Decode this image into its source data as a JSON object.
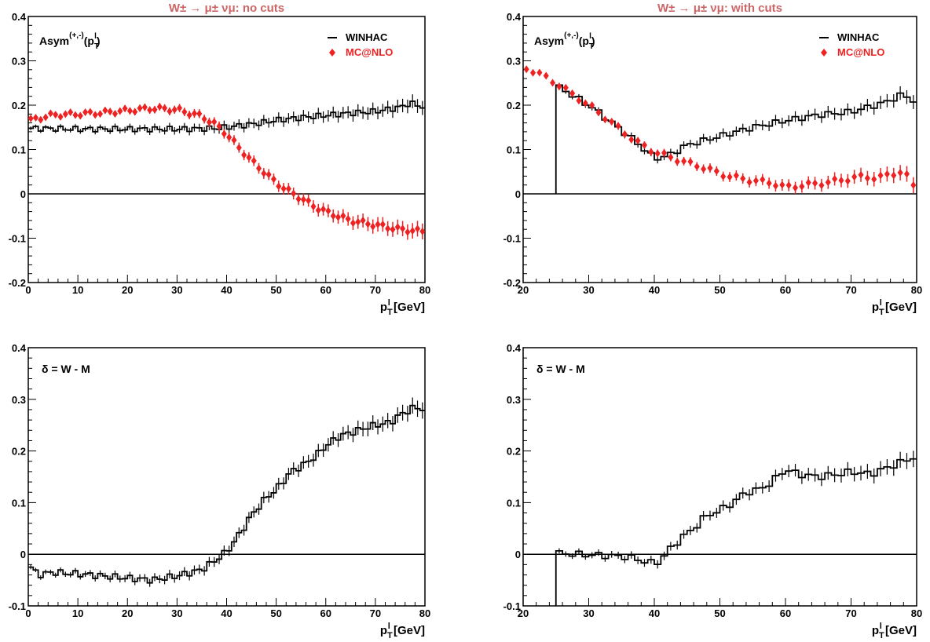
{
  "chart_data": [
    {
      "type": "line",
      "panel_title": "W± → μ± νμ: no cuts",
      "ylabel_main": "Asym",
      "ylabel_sup": "(+,-)",
      "ylabel_arg": "(p",
      "ylabel_sub": "T",
      "ylabel_sup2": "l",
      "ylabel_close": ")",
      "xlabel_main": "p",
      "xlabel_sub": "T",
      "xlabel_sup": "l",
      "xlabel_unit": " [GeV]",
      "xlim": [
        0,
        80
      ],
      "ylim": [
        -0.2,
        0.4
      ],
      "xticks": [
        0,
        10,
        20,
        30,
        40,
        50,
        60,
        70,
        80
      ],
      "xtick_labels": [
        "0",
        "10",
        "20",
        "30",
        "40",
        "50",
        "60",
        "70",
        "80"
      ],
      "yticks": [
        -0.2,
        -0.1,
        0,
        0.1,
        0.2,
        0.3,
        0.4
      ],
      "ytick_labels": [
        "-0.2",
        "-0.1",
        "0",
        "0.1",
        "0.2",
        "0.3",
        "0.4"
      ],
      "zero_line": true,
      "legend": [
        "WINHAC",
        "MC@NLO"
      ],
      "series": [
        {
          "name": "WINHAC",
          "style": "step",
          "color": "#000000",
          "x": [
            0,
            5,
            10,
            15,
            20,
            25,
            30,
            35,
            38,
            40,
            42,
            45,
            48,
            50,
            55,
            60,
            65,
            70,
            75,
            77,
            80
          ],
          "values": [
            0.148,
            0.147,
            0.146,
            0.146,
            0.146,
            0.146,
            0.146,
            0.147,
            0.148,
            0.15,
            0.153,
            0.157,
            0.162,
            0.166,
            0.172,
            0.177,
            0.182,
            0.186,
            0.195,
            0.205,
            0.195
          ]
        },
        {
          "name": "MC@NLO",
          "style": "points",
          "color": "#ee2222",
          "x": [
            0,
            5,
            10,
            15,
            20,
            25,
            30,
            35,
            38,
            40,
            42,
            45,
            48,
            50,
            52,
            55,
            58,
            60,
            65,
            70,
            75,
            80
          ],
          "values": [
            0.165,
            0.178,
            0.18,
            0.183,
            0.188,
            0.193,
            0.19,
            0.175,
            0.155,
            0.135,
            0.11,
            0.075,
            0.045,
            0.025,
            0.01,
            -0.01,
            -0.03,
            -0.04,
            -0.06,
            -0.07,
            -0.08,
            -0.085
          ]
        }
      ]
    },
    {
      "type": "line",
      "panel_title": "W± → μ± νμ: with cuts",
      "ylabel_main": "Asym",
      "ylabel_sup": "(+,-)",
      "ylabel_arg": "(p",
      "ylabel_sub": "T",
      "ylabel_sup2": "l",
      "ylabel_close": ")",
      "xlabel_main": "p",
      "xlabel_sub": "T",
      "xlabel_sup": "l",
      "xlabel_unit": " [GeV]",
      "xlim": [
        20,
        80
      ],
      "ylim": [
        -0.2,
        0.4
      ],
      "xticks": [
        20,
        30,
        40,
        50,
        60,
        70,
        80
      ],
      "xtick_labels": [
        "20",
        "30",
        "40",
        "50",
        "60",
        "70",
        "80"
      ],
      "yticks": [
        -0.2,
        -0.1,
        0,
        0.1,
        0.2,
        0.3,
        0.4
      ],
      "ytick_labels": [
        "-0.2",
        "-0.1",
        "0",
        "0.1",
        "0.2",
        "0.3",
        "0.4"
      ],
      "zero_line": true,
      "legend": [
        "WINHAC",
        "MC@NLO"
      ],
      "series": [
        {
          "name": "WINHAC",
          "style": "step",
          "color": "#000000",
          "x": [
            25,
            25,
            28,
            31,
            34,
            37,
            40,
            42,
            45,
            50,
            55,
            60,
            65,
            70,
            75,
            78,
            80
          ],
          "values": [
            0,
            0.245,
            0.218,
            0.19,
            0.155,
            0.12,
            0.08,
            0.085,
            0.11,
            0.13,
            0.15,
            0.165,
            0.178,
            0.185,
            0.205,
            0.225,
            0.205
          ]
        },
        {
          "name": "MC@NLO",
          "style": "points",
          "color": "#ee2222",
          "x": [
            20,
            22,
            25,
            28,
            31,
            34,
            37,
            40,
            42,
            45,
            48,
            50,
            53,
            55,
            58,
            60,
            63,
            66,
            68,
            70,
            72,
            74,
            76,
            78,
            80
          ],
          "values": [
            0.285,
            0.275,
            0.25,
            0.22,
            0.19,
            0.155,
            0.12,
            0.095,
            0.085,
            0.07,
            0.058,
            0.045,
            0.035,
            0.03,
            0.025,
            0.015,
            0.02,
            0.025,
            0.03,
            0.035,
            0.04,
            0.035,
            0.045,
            0.05,
            0.01
          ]
        }
      ]
    },
    {
      "type": "line",
      "inset_label": "δ = W - M",
      "xlabel_main": "p",
      "xlabel_sub": "T",
      "xlabel_sup": "l",
      "xlabel_unit": " [GeV]",
      "xlim": [
        0,
        80
      ],
      "ylim": [
        -0.1,
        0.4
      ],
      "xticks": [
        0,
        10,
        20,
        30,
        40,
        50,
        60,
        70,
        80
      ],
      "xtick_labels": [
        "0",
        "10",
        "20",
        "30",
        "40",
        "50",
        "60",
        "70",
        "80"
      ],
      "yticks": [
        -0.1,
        0,
        0.1,
        0.2,
        0.3,
        0.4
      ],
      "ytick_labels": [
        "-0.1",
        "0",
        "0.1",
        "0.2",
        "0.3",
        "0.4"
      ],
      "zero_line": true,
      "series": [
        {
          "name": "",
          "style": "step",
          "color": "#000000",
          "x": [
            0,
            2,
            5,
            10,
            15,
            20,
            25,
            30,
            35,
            38,
            40,
            42,
            45,
            48,
            50,
            53,
            55,
            58,
            60,
            63,
            65,
            68,
            70,
            73,
            75,
            78,
            80
          ],
          "values": [
            -0.02,
            -0.04,
            -0.035,
            -0.038,
            -0.042,
            -0.046,
            -0.05,
            -0.042,
            -0.03,
            -0.01,
            0.005,
            0.03,
            0.075,
            0.11,
            0.125,
            0.16,
            0.17,
            0.19,
            0.21,
            0.23,
            0.235,
            0.245,
            0.25,
            0.255,
            0.27,
            0.285,
            0.28
          ]
        }
      ]
    },
    {
      "type": "line",
      "inset_label": "δ = W - M",
      "xlabel_main": "p",
      "xlabel_sub": "T",
      "xlabel_sup": "l",
      "xlabel_unit": " [GeV]",
      "xlim": [
        20,
        80
      ],
      "ylim": [
        -0.1,
        0.4
      ],
      "xticks": [
        20,
        30,
        40,
        50,
        60,
        70,
        80
      ],
      "xtick_labels": [
        "20",
        "30",
        "40",
        "50",
        "60",
        "70",
        "80"
      ],
      "yticks": [
        -0.1,
        0,
        0.1,
        0.2,
        0.3,
        0.4
      ],
      "ytick_labels": [
        "-0.1",
        "0",
        "0.1",
        "0.2",
        "0.3",
        "0.4"
      ],
      "zero_line": true,
      "series": [
        {
          "name": "",
          "style": "step",
          "color": "#000000",
          "x": [
            25,
            25,
            28,
            32,
            36,
            38,
            40,
            41,
            42,
            44,
            46,
            48,
            50,
            52,
            54,
            56,
            58,
            60,
            62,
            65,
            68,
            70,
            73,
            76,
            78,
            80
          ],
          "values": [
            -0.1,
            0.002,
            0.0,
            -0.002,
            -0.005,
            -0.012,
            -0.018,
            -0.012,
            0.005,
            0.03,
            0.05,
            0.075,
            0.085,
            0.1,
            0.12,
            0.125,
            0.14,
            0.165,
            0.155,
            0.15,
            0.155,
            0.16,
            0.155,
            0.17,
            0.18,
            0.19
          ]
        }
      ]
    }
  ]
}
